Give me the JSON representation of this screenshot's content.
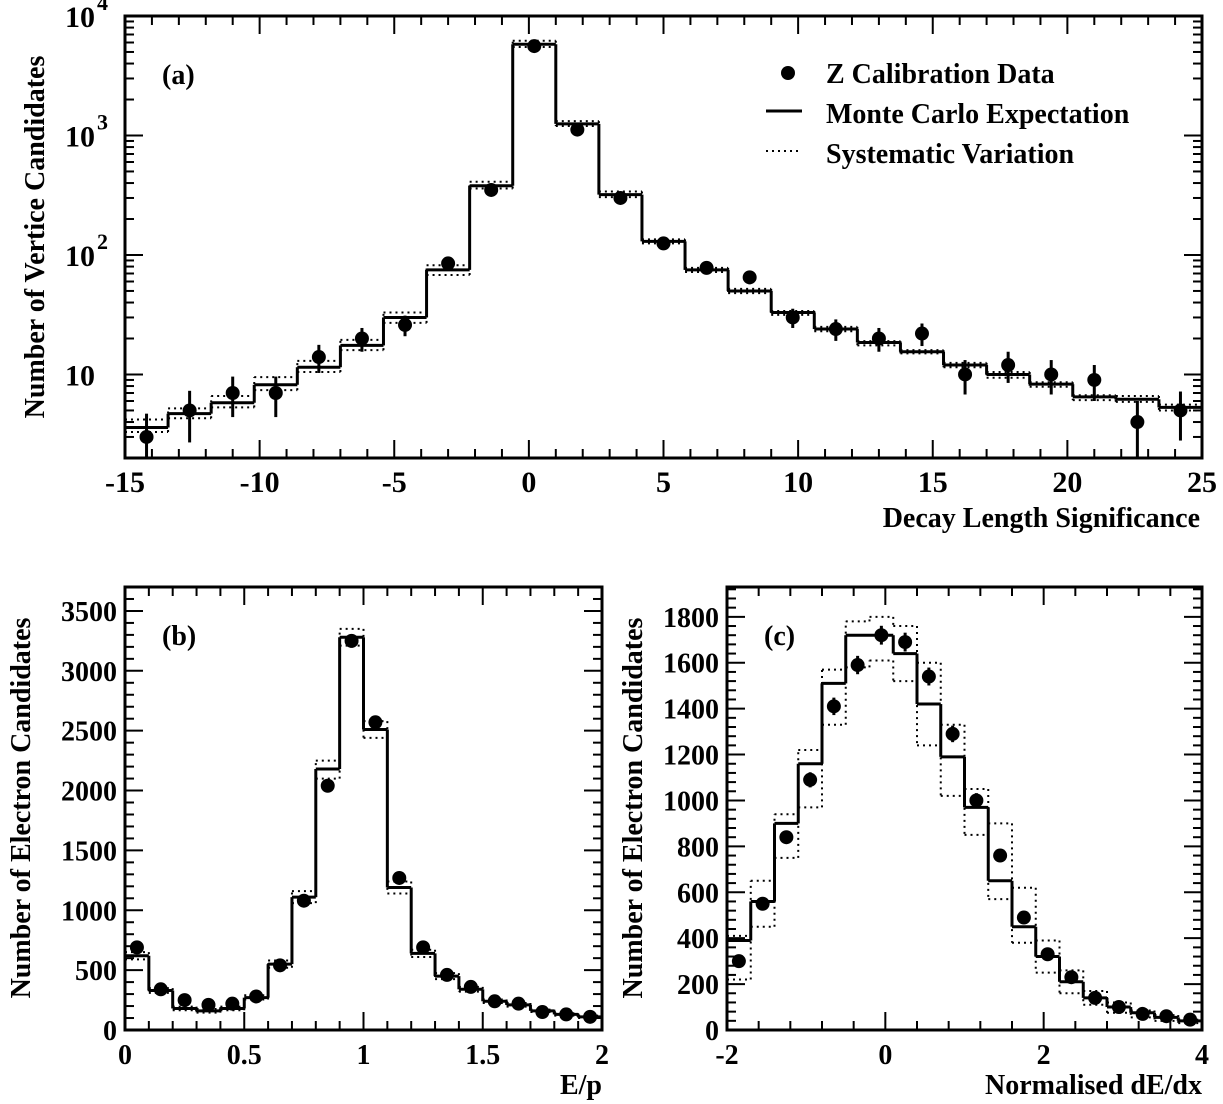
{
  "chart_data": [
    {
      "id": "a",
      "type": "line",
      "panel_label": "(a)",
      "xlabel": "Decay Length Significance",
      "ylabel": "Number of Vertice Candidates",
      "xlim": [
        -15,
        25
      ],
      "ylim": [
        2,
        10000
      ],
      "yscale": "log",
      "xticks": [
        -15,
        -10,
        -5,
        0,
        5,
        10,
        15,
        20,
        25
      ],
      "yticks": [
        {
          "value": 10,
          "label": "10",
          "sup": ""
        },
        {
          "value": 100,
          "label": "10",
          "sup": "2"
        },
        {
          "value": 1000,
          "label": "10",
          "sup": "3"
        },
        {
          "value": 10000,
          "label": "10",
          "sup": "4"
        }
      ],
      "legend": {
        "position": "top-right",
        "entries": [
          {
            "label": "Z Calibration Data",
            "style": "marker"
          },
          {
            "label": "Monte Carlo Expectation",
            "style": "solid"
          },
          {
            "label": "Systematic Variation",
            "style": "dotted"
          }
        ]
      },
      "bin_edges": [
        -15,
        -13.4,
        -11.8,
        -10.2,
        -8.6,
        -7,
        -5.4,
        -3.8,
        -2.2,
        -0.6,
        1,
        2.6,
        4.2,
        5.8,
        7.4,
        9,
        10.6,
        12.2,
        13.8,
        15.4,
        17,
        18.6,
        20.2,
        21.8,
        23.4,
        25
      ],
      "series": [
        {
          "name": "Monte Carlo Expectation",
          "style": "solid",
          "values": [
            3.6,
            4.7,
            5.8,
            8.2,
            11.5,
            17.5,
            30,
            75,
            380,
            5800,
            1250,
            320,
            130,
            75,
            50,
            33,
            24,
            18.5,
            15.5,
            12,
            10,
            8.3,
            6.5,
            6.2,
            5.3
          ]
        },
        {
          "name": "Systematic Variation (up)",
          "style": "dotted",
          "values": [
            4.2,
            5.2,
            6.6,
            9.5,
            13,
            19.5,
            33,
            82,
            410,
            6200,
            1320,
            340,
            135,
            78,
            52,
            34,
            25,
            19,
            16,
            12.5,
            10.5,
            8.6,
            6.7,
            6.6,
            5.6
          ]
        },
        {
          "name": "Systematic Variation (down)",
          "style": "dotted",
          "values": [
            3.3,
            4.3,
            5.3,
            7.4,
            10.5,
            16,
            27,
            68,
            360,
            5500,
            1200,
            305,
            125,
            72,
            48,
            31.5,
            23,
            17.5,
            15,
            11.5,
            9.4,
            7.9,
            6.1,
            5.9,
            5
          ]
        },
        {
          "name": "Z Calibration Data",
          "style": "points",
          "x": [
            -14.2,
            -12.6,
            -11,
            -9.4,
            -7.8,
            -6.2,
            -4.6,
            -3,
            -1.4,
            0.2,
            1.8,
            3.4,
            5,
            6.6,
            8.2,
            9.8,
            11.4,
            13,
            14.6,
            16.2,
            17.8,
            19.4,
            21,
            22.6,
            24.2
          ],
          "y": [
            3,
            5,
            7,
            7,
            14,
            20,
            26,
            85,
            350,
            5600,
            1120,
            300,
            125,
            78,
            65,
            30,
            24,
            20,
            22,
            10,
            12,
            10,
            9,
            4,
            5
          ],
          "err": [
            1.7,
            2.3,
            2.6,
            2.6,
            3.7,
            4.5,
            5.1,
            9.2,
            19,
            75,
            33,
            17,
            11,
            9,
            8,
            5.5,
            4.9,
            4.5,
            4.7,
            3.2,
            3.5,
            3.2,
            3,
            2,
            2.2
          ]
        }
      ]
    },
    {
      "id": "b",
      "type": "line",
      "panel_label": "(b)",
      "xlabel": "E/p",
      "ylabel": "Number of Electron Candidates",
      "xlim": [
        0,
        2
      ],
      "ylim": [
        0,
        3700
      ],
      "yscale": "linear",
      "xticks": [
        0,
        0.5,
        1,
        1.5,
        2
      ],
      "yticks": [
        0,
        500,
        1000,
        1500,
        2000,
        2500,
        3000,
        3500
      ],
      "bin_edges": [
        0,
        0.1,
        0.2,
        0.3,
        0.4,
        0.5,
        0.6,
        0.7,
        0.8,
        0.9,
        1.0,
        1.1,
        1.2,
        1.3,
        1.4,
        1.5,
        1.6,
        1.7,
        1.8,
        1.9,
        2.0
      ],
      "series": [
        {
          "name": "Monte Carlo Expectation",
          "style": "solid",
          "values": [
            620,
            330,
            180,
            160,
            180,
            270,
            550,
            1110,
            2180,
            3280,
            2510,
            1190,
            640,
            450,
            340,
            240,
            210,
            160,
            130,
            110
          ]
        },
        {
          "name": "Systematic Variation (up)",
          "style": "dotted",
          "values": [
            650,
            350,
            195,
            175,
            195,
            290,
            580,
            1160,
            2250,
            3350,
            2580,
            1240,
            670,
            475,
            360,
            255,
            225,
            170,
            140,
            120
          ]
        },
        {
          "name": "Systematic Variation (down)",
          "style": "dotted",
          "values": [
            590,
            310,
            165,
            145,
            165,
            255,
            520,
            1060,
            2100,
            3210,
            2440,
            1140,
            610,
            425,
            320,
            225,
            195,
            150,
            120,
            100
          ]
        },
        {
          "name": "Z Calibration Data",
          "style": "points",
          "x": [
            0.05,
            0.15,
            0.25,
            0.35,
            0.45,
            0.55,
            0.65,
            0.75,
            0.85,
            0.95,
            1.05,
            1.15,
            1.25,
            1.35,
            1.45,
            1.55,
            1.65,
            1.75,
            1.85,
            1.95
          ],
          "y": [
            690,
            340,
            250,
            210,
            220,
            280,
            540,
            1080,
            2040,
            3250,
            2570,
            1270,
            690,
            460,
            360,
            240,
            220,
            150,
            130,
            110
          ],
          "err": [
            26,
            18,
            16,
            14,
            15,
            17,
            23,
            33,
            45,
            57,
            51,
            36,
            26,
            21,
            19,
            15,
            15,
            12,
            11,
            10
          ]
        }
      ]
    },
    {
      "id": "c",
      "type": "line",
      "panel_label": "(c)",
      "xlabel": "Normalised dE/dx",
      "ylabel": "Number of Electron Candidates",
      "xlim": [
        -2,
        4
      ],
      "ylim": [
        0,
        1930
      ],
      "yscale": "linear",
      "xticks": [
        -2,
        0,
        2,
        4
      ],
      "yticks": [
        0,
        200,
        400,
        600,
        800,
        1000,
        1200,
        1400,
        1600,
        1800
      ],
      "bin_edges": [
        -2,
        -1.7,
        -1.4,
        -1.1,
        -0.8,
        -0.5,
        -0.2,
        0.1,
        0.4,
        0.7,
        1.0,
        1.3,
        1.6,
        1.9,
        2.2,
        2.5,
        2.8,
        3.1,
        3.4,
        3.7,
        4.0
      ],
      "series": [
        {
          "name": "Monte Carlo Expectation",
          "style": "solid",
          "values": [
            390,
            560,
            900,
            1160,
            1510,
            1720,
            1720,
            1640,
            1420,
            1190,
            970,
            650,
            450,
            320,
            210,
            140,
            100,
            75,
            55,
            40
          ]
        },
        {
          "name": "Systematic Variation (up)",
          "style": "dotted",
          "values": [
            410,
            650,
            940,
            1220,
            1570,
            1780,
            1800,
            1760,
            1600,
            1330,
            1050,
            900,
            620,
            390,
            260,
            170,
            120,
            85,
            65,
            45
          ]
        },
        {
          "name": "Systematic Variation (down)",
          "style": "dotted",
          "values": [
            220,
            450,
            750,
            970,
            1330,
            1580,
            1610,
            1520,
            1240,
            1020,
            850,
            570,
            380,
            250,
            160,
            110,
            75,
            55,
            40,
            30
          ]
        },
        {
          "name": "Z Calibration Data",
          "style": "points",
          "x": [
            -1.85,
            -1.55,
            -1.25,
            -0.95,
            -0.65,
            -0.35,
            -0.05,
            0.25,
            0.55,
            0.85,
            1.15,
            1.45,
            1.75,
            2.05,
            2.35,
            2.65,
            2.95,
            3.25,
            3.55,
            3.85
          ],
          "y": [
            300,
            550,
            840,
            1090,
            1410,
            1590,
            1720,
            1690,
            1540,
            1290,
            1000,
            760,
            490,
            330,
            230,
            140,
            100,
            70,
            60,
            45
          ],
          "err": [
            17,
            23,
            29,
            33,
            38,
            40,
            41,
            41,
            39,
            36,
            32,
            28,
            22,
            18,
            15,
            12,
            10,
            8,
            8,
            7
          ]
        }
      ]
    }
  ]
}
